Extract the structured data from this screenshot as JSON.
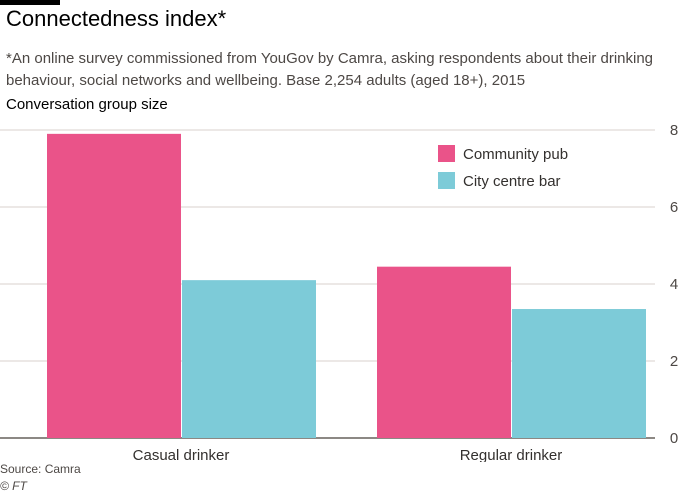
{
  "header": {
    "title": "Connectedness index*",
    "subtitle": "*An online survey commissioned from YouGov by Camra, asking respondents about their drinking behaviour, social networks and wellbeing. Base 2,254 adults (aged 18+), 2015"
  },
  "footer": {
    "source": "Source: Camra",
    "credit": "© FT"
  },
  "colors": {
    "community_pub": "#ea5389",
    "city_centre_bar": "#7dcbd8",
    "gridline": "#d8d2cc",
    "axis": "#66605c"
  },
  "chart_data": {
    "type": "bar",
    "title": "Connectedness index*",
    "ylabel": "Conversation group size",
    "xlabel": "",
    "categories": [
      "Casual drinker",
      "Regular drinker"
    ],
    "series": [
      {
        "name": "Community pub",
        "values": [
          7.9,
          4.45
        ]
      },
      {
        "name": "City centre bar",
        "values": [
          4.1,
          3.35
        ]
      }
    ],
    "ylim": [
      0,
      8
    ],
    "yticks": [
      0,
      2,
      4,
      6,
      8
    ],
    "y_axis_side": "right",
    "grid": true,
    "legend_position": "top-right"
  }
}
